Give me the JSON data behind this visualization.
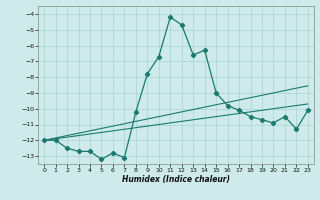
{
  "xlabel": "Humidex (Indice chaleur)",
  "x_values": [
    0,
    1,
    2,
    3,
    4,
    5,
    6,
    7,
    8,
    9,
    10,
    11,
    12,
    13,
    14,
    15,
    16,
    17,
    18,
    19,
    20,
    21,
    22,
    23
  ],
  "y_main": [
    -12,
    -12,
    -12.5,
    -12.7,
    -12.7,
    -13.2,
    -12.8,
    -13.1,
    -10.2,
    -7.8,
    -6.7,
    -4.2,
    -4.7,
    -6.6,
    -6.3,
    -9.0,
    -9.8,
    -10.1,
    -10.5,
    -10.7,
    -10.9,
    -10.5,
    -11.3,
    -10.1
  ],
  "y_trend1": [
    -12.0,
    -11.9,
    -11.8,
    -11.7,
    -11.6,
    -11.5,
    -11.4,
    -11.3,
    -11.2,
    -11.1,
    -11.0,
    -10.9,
    -10.8,
    -10.7,
    -10.6,
    -10.5,
    -10.4,
    -10.3,
    -10.2,
    -10.1,
    -10.0,
    -9.9,
    -9.8,
    -9.7
  ],
  "y_trend2": [
    -12.0,
    -11.85,
    -11.7,
    -11.55,
    -11.4,
    -11.25,
    -11.1,
    -10.95,
    -10.8,
    -10.65,
    -10.5,
    -10.35,
    -10.2,
    -10.05,
    -9.9,
    -9.75,
    -9.6,
    -9.45,
    -9.3,
    -9.15,
    -9.0,
    -8.85,
    -8.7,
    -8.55
  ],
  "xlim": [
    -0.5,
    23.5
  ],
  "ylim": [
    -13.5,
    -3.5
  ],
  "yticks": [
    -4,
    -5,
    -6,
    -7,
    -8,
    -9,
    -10,
    -11,
    -12,
    -13
  ],
  "xticks": [
    0,
    1,
    2,
    3,
    4,
    5,
    6,
    7,
    8,
    9,
    10,
    11,
    12,
    13,
    14,
    15,
    16,
    17,
    18,
    19,
    20,
    21,
    22,
    23
  ],
  "line_color": "#1a7a6e",
  "bg_color": "#ceeaea",
  "grid_color": "#a8d4d4",
  "marker": "D",
  "marker_size": 2.2,
  "linewidth": 0.9
}
